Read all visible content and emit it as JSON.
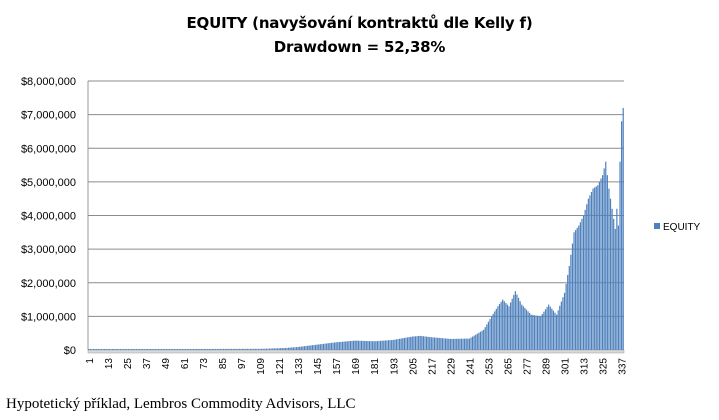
{
  "chart_data": {
    "type": "bar",
    "title": "EQUITY (navyšování kontraktů dle Kelly f)",
    "subtitle": "Drawdown = 52,38%",
    "xlabel": "",
    "ylabel": "",
    "ylim": [
      0,
      8000000
    ],
    "yticks": [
      "$0",
      "$1,000,000",
      "$2,000,000",
      "$3,000,000",
      "$4,000,000",
      "$5,000,000",
      "$6,000,000",
      "$7,000,000",
      "$8,000,000"
    ],
    "xticks": [
      "1",
      "13",
      "25",
      "37",
      "49",
      "61",
      "73",
      "85",
      "97",
      "109",
      "121",
      "133",
      "145",
      "157",
      "169",
      "181",
      "193",
      "205",
      "217",
      "229",
      "241",
      "253",
      "265",
      "277",
      "289",
      "301",
      "313",
      "325",
      "337"
    ],
    "grid": true,
    "legend_position": "right",
    "series": [
      {
        "name": "EQUITY",
        "color": "#4f81bd",
        "x_start": 1,
        "x_end": 338,
        "anchors": [
          [
            1,
            30000
          ],
          [
            60,
            30000
          ],
          [
            110,
            35000
          ],
          [
            125,
            60000
          ],
          [
            133,
            90000
          ],
          [
            145,
            160000
          ],
          [
            157,
            230000
          ],
          [
            169,
            280000
          ],
          [
            181,
            260000
          ],
          [
            193,
            300000
          ],
          [
            205,
            400000
          ],
          [
            210,
            420000
          ],
          [
            217,
            380000
          ],
          [
            229,
            330000
          ],
          [
            241,
            340000
          ],
          [
            250,
            600000
          ],
          [
            255,
            1000000
          ],
          [
            259,
            1300000
          ],
          [
            262,
            1500000
          ],
          [
            266,
            1300000
          ],
          [
            270,
            1750000
          ],
          [
            274,
            1350000
          ],
          [
            280,
            1050000
          ],
          [
            286,
            1000000
          ],
          [
            291,
            1350000
          ],
          [
            296,
            1050000
          ],
          [
            301,
            1700000
          ],
          [
            304,
            2500000
          ],
          [
            307,
            3500000
          ],
          [
            310,
            3700000
          ],
          [
            313,
            4000000
          ],
          [
            316,
            4500000
          ],
          [
            319,
            4800000
          ],
          [
            322,
            4900000
          ],
          [
            325,
            5200000
          ],
          [
            327,
            5600000
          ],
          [
            329,
            4800000
          ],
          [
            331,
            4200000
          ],
          [
            333,
            3600000
          ],
          [
            334,
            4200000
          ],
          [
            335,
            3700000
          ],
          [
            336,
            5600000
          ],
          [
            337,
            6800000
          ],
          [
            338,
            7200000
          ]
        ]
      }
    ]
  },
  "footer": "Hypotetický příklad, Lembros Commodity Advisors, LLC"
}
